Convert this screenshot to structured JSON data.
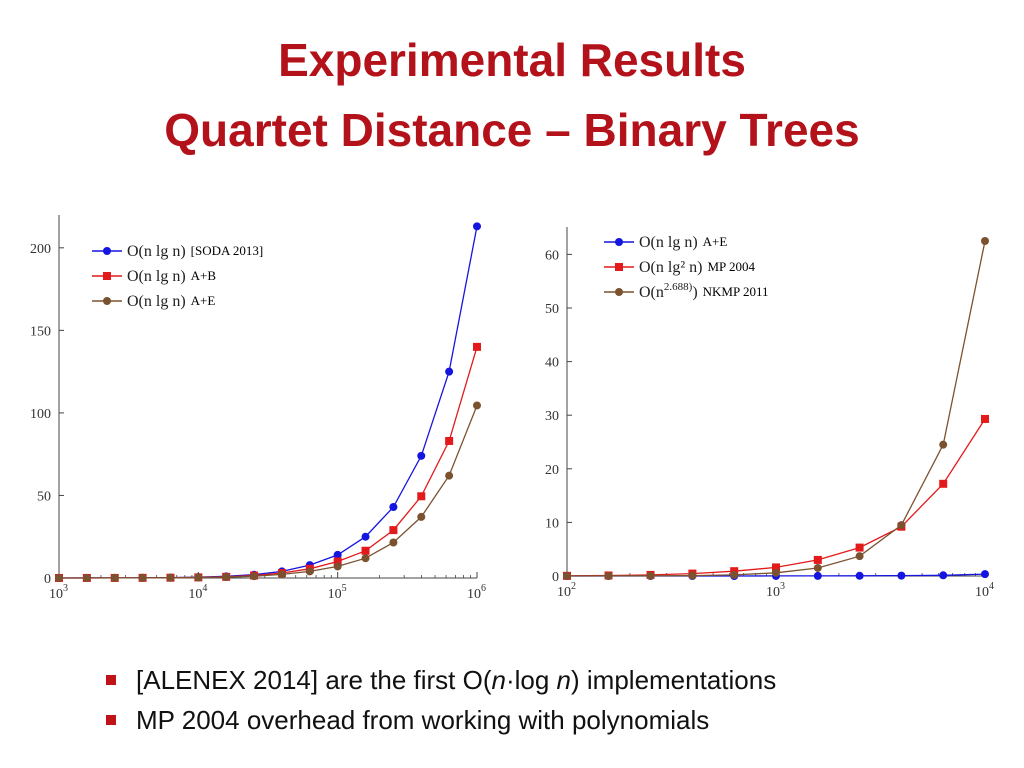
{
  "slide": {
    "title_line1": "Experimental Results",
    "title_line2": "Quartet Distance – Binary Trees",
    "title_color": "#b3121a",
    "bullets": [
      {
        "prefix": "[ALENEX 2014] are the first O(",
        "n1": "n",
        "dot": "·log ",
        "n2": "n",
        "suffix": ") implementations"
      },
      {
        "text": "MP 2004 overhead from working with polynomials"
      }
    ],
    "bullet_color": "#c0121a"
  },
  "chart_data": [
    {
      "type": "line",
      "xscale": "log",
      "xlim": [
        1000,
        1000000
      ],
      "ylim": [
        0,
        212
      ],
      "x_ticks": [
        {
          "value": 1000,
          "base": "10",
          "exp": "3"
        },
        {
          "value": 10000,
          "base": "10",
          "exp": "4"
        },
        {
          "value": 100000,
          "base": "10",
          "exp": "5"
        },
        {
          "value": 1000000,
          "base": "10",
          "exp": "6"
        }
      ],
      "y_ticks": [
        0,
        50,
        100,
        150,
        200
      ],
      "legend_position": "top-left",
      "x": [
        1000,
        1585,
        2512,
        3981,
        6310,
        10000,
        15849,
        25119,
        39811,
        63096,
        100000,
        158489,
        251189,
        398107,
        630957,
        1000000
      ],
      "series": [
        {
          "legend_math": "O(n lg n)",
          "note": "[SODA 2013]",
          "color": "#1515e0",
          "marker": "circle",
          "values": [
            0.02,
            0.04,
            0.07,
            0.13,
            0.25,
            0.5,
            1.0,
            2.0,
            4.0,
            7.8,
            14.0,
            25.0,
            43.0,
            74.0,
            125.0,
            213.0
          ]
        },
        {
          "legend_math": "O(n lg n)",
          "note": "A+B",
          "color": "#e31a1c",
          "marker": "square",
          "values": [
            0.02,
            0.03,
            0.05,
            0.09,
            0.18,
            0.36,
            0.7,
            1.5,
            3.0,
            5.6,
            10.0,
            16.5,
            29.0,
            49.5,
            83.0,
            140.0
          ]
        },
        {
          "legend_math": "O(n lg n)",
          "note": "A+E",
          "color": "#7a5230",
          "marker": "circle",
          "values": [
            0.02,
            0.03,
            0.04,
            0.07,
            0.14,
            0.27,
            0.55,
            1.1,
            2.2,
            4.0,
            7.0,
            12.0,
            21.5,
            37.0,
            62.0,
            104.5
          ]
        }
      ]
    },
    {
      "type": "line",
      "xscale": "log",
      "xlim": [
        100,
        10000
      ],
      "ylim": [
        0,
        62.5
      ],
      "x_ticks": [
        {
          "value": 100,
          "base": "10",
          "exp": "2"
        },
        {
          "value": 1000,
          "base": "10",
          "exp": "3"
        },
        {
          "value": 10000,
          "base": "10",
          "exp": "4"
        }
      ],
      "y_ticks": [
        0,
        10,
        20,
        30,
        40,
        50,
        60
      ],
      "legend_position": "top-left",
      "x": [
        100,
        158,
        251,
        398,
        631,
        1000,
        1585,
        2512,
        3981,
        6310,
        10000
      ],
      "series": [
        {
          "legend_math": "O(n lg n)",
          "note": "A+E",
          "color": "#1515e0",
          "marker": "circle",
          "values": [
            0.0,
            0.0,
            0.0,
            0.0,
            0.0,
            0.01,
            0.02,
            0.04,
            0.07,
            0.13,
            0.35
          ]
        },
        {
          "legend_math": "O(n lg² n)",
          "note": "MP 2004",
          "color": "#e31a1c",
          "marker": "square",
          "values": [
            0.03,
            0.1,
            0.2,
            0.45,
            0.9,
            1.6,
            3.0,
            5.3,
            9.2,
            17.2,
            29.3
          ]
        },
        {
          "legend_math": "O(n^2.688)",
          "note": "NKMP 2011",
          "color": "#7a5230",
          "marker": "circle",
          "values": [
            0.0,
            0.01,
            0.03,
            0.08,
            0.2,
            0.6,
            1.5,
            3.7,
            9.5,
            24.5,
            62.5
          ]
        }
      ]
    }
  ]
}
